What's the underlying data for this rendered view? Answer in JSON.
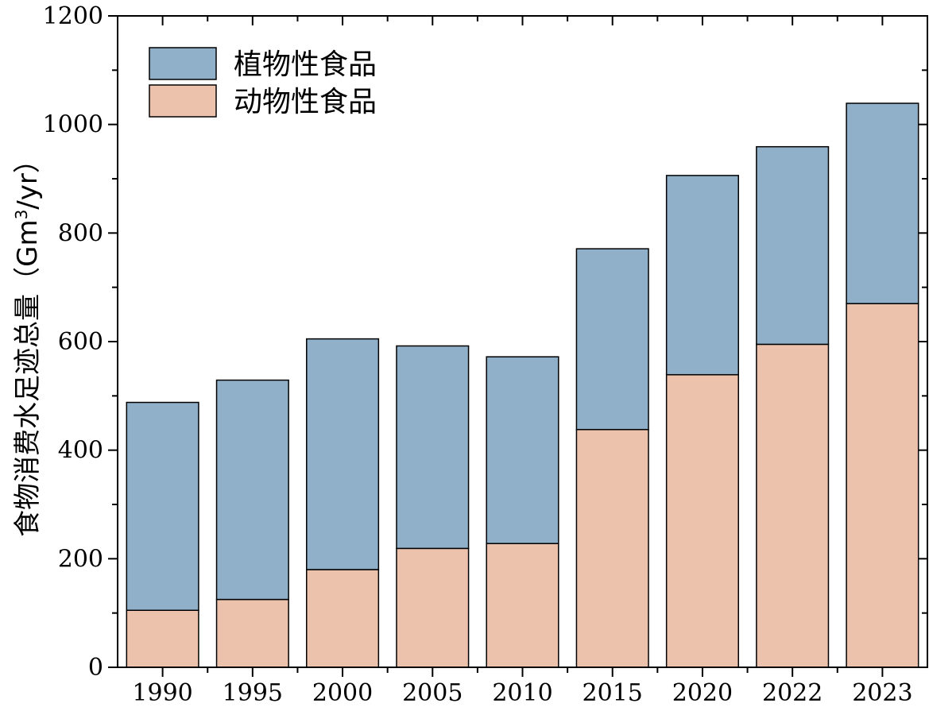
{
  "chart_data": {
    "type": "bar",
    "stacked": true,
    "categories": [
      "1990",
      "1995",
      "2000",
      "2005",
      "2010",
      "2015",
      "2020",
      "2022",
      "2023"
    ],
    "series": [
      {
        "name": "动物性食品",
        "color": "#ecc2ad",
        "values": [
          105,
          125,
          180,
          219,
          228,
          438,
          539,
          595,
          670
        ]
      },
      {
        "name": "植物性食品",
        "color": "#90b0c9",
        "values": [
          383,
          404,
          425,
          373,
          344,
          333,
          367,
          364,
          369
        ]
      }
    ],
    "totals": [
      488,
      529,
      605,
      592,
      572,
      771,
      906,
      959,
      1039
    ],
    "ylim": [
      0,
      1200
    ],
    "yticks": [
      "0",
      "200",
      "400",
      "600",
      "800",
      "1000",
      "1200"
    ],
    "ylabel": {
      "main": "食物消费水足迹总量（Gm",
      "sup": "3",
      "tail": "/yr）"
    },
    "xlabel": "",
    "legend": {
      "position": "top-left",
      "entries": [
        "植物性食品",
        "动物性食品"
      ]
    }
  }
}
